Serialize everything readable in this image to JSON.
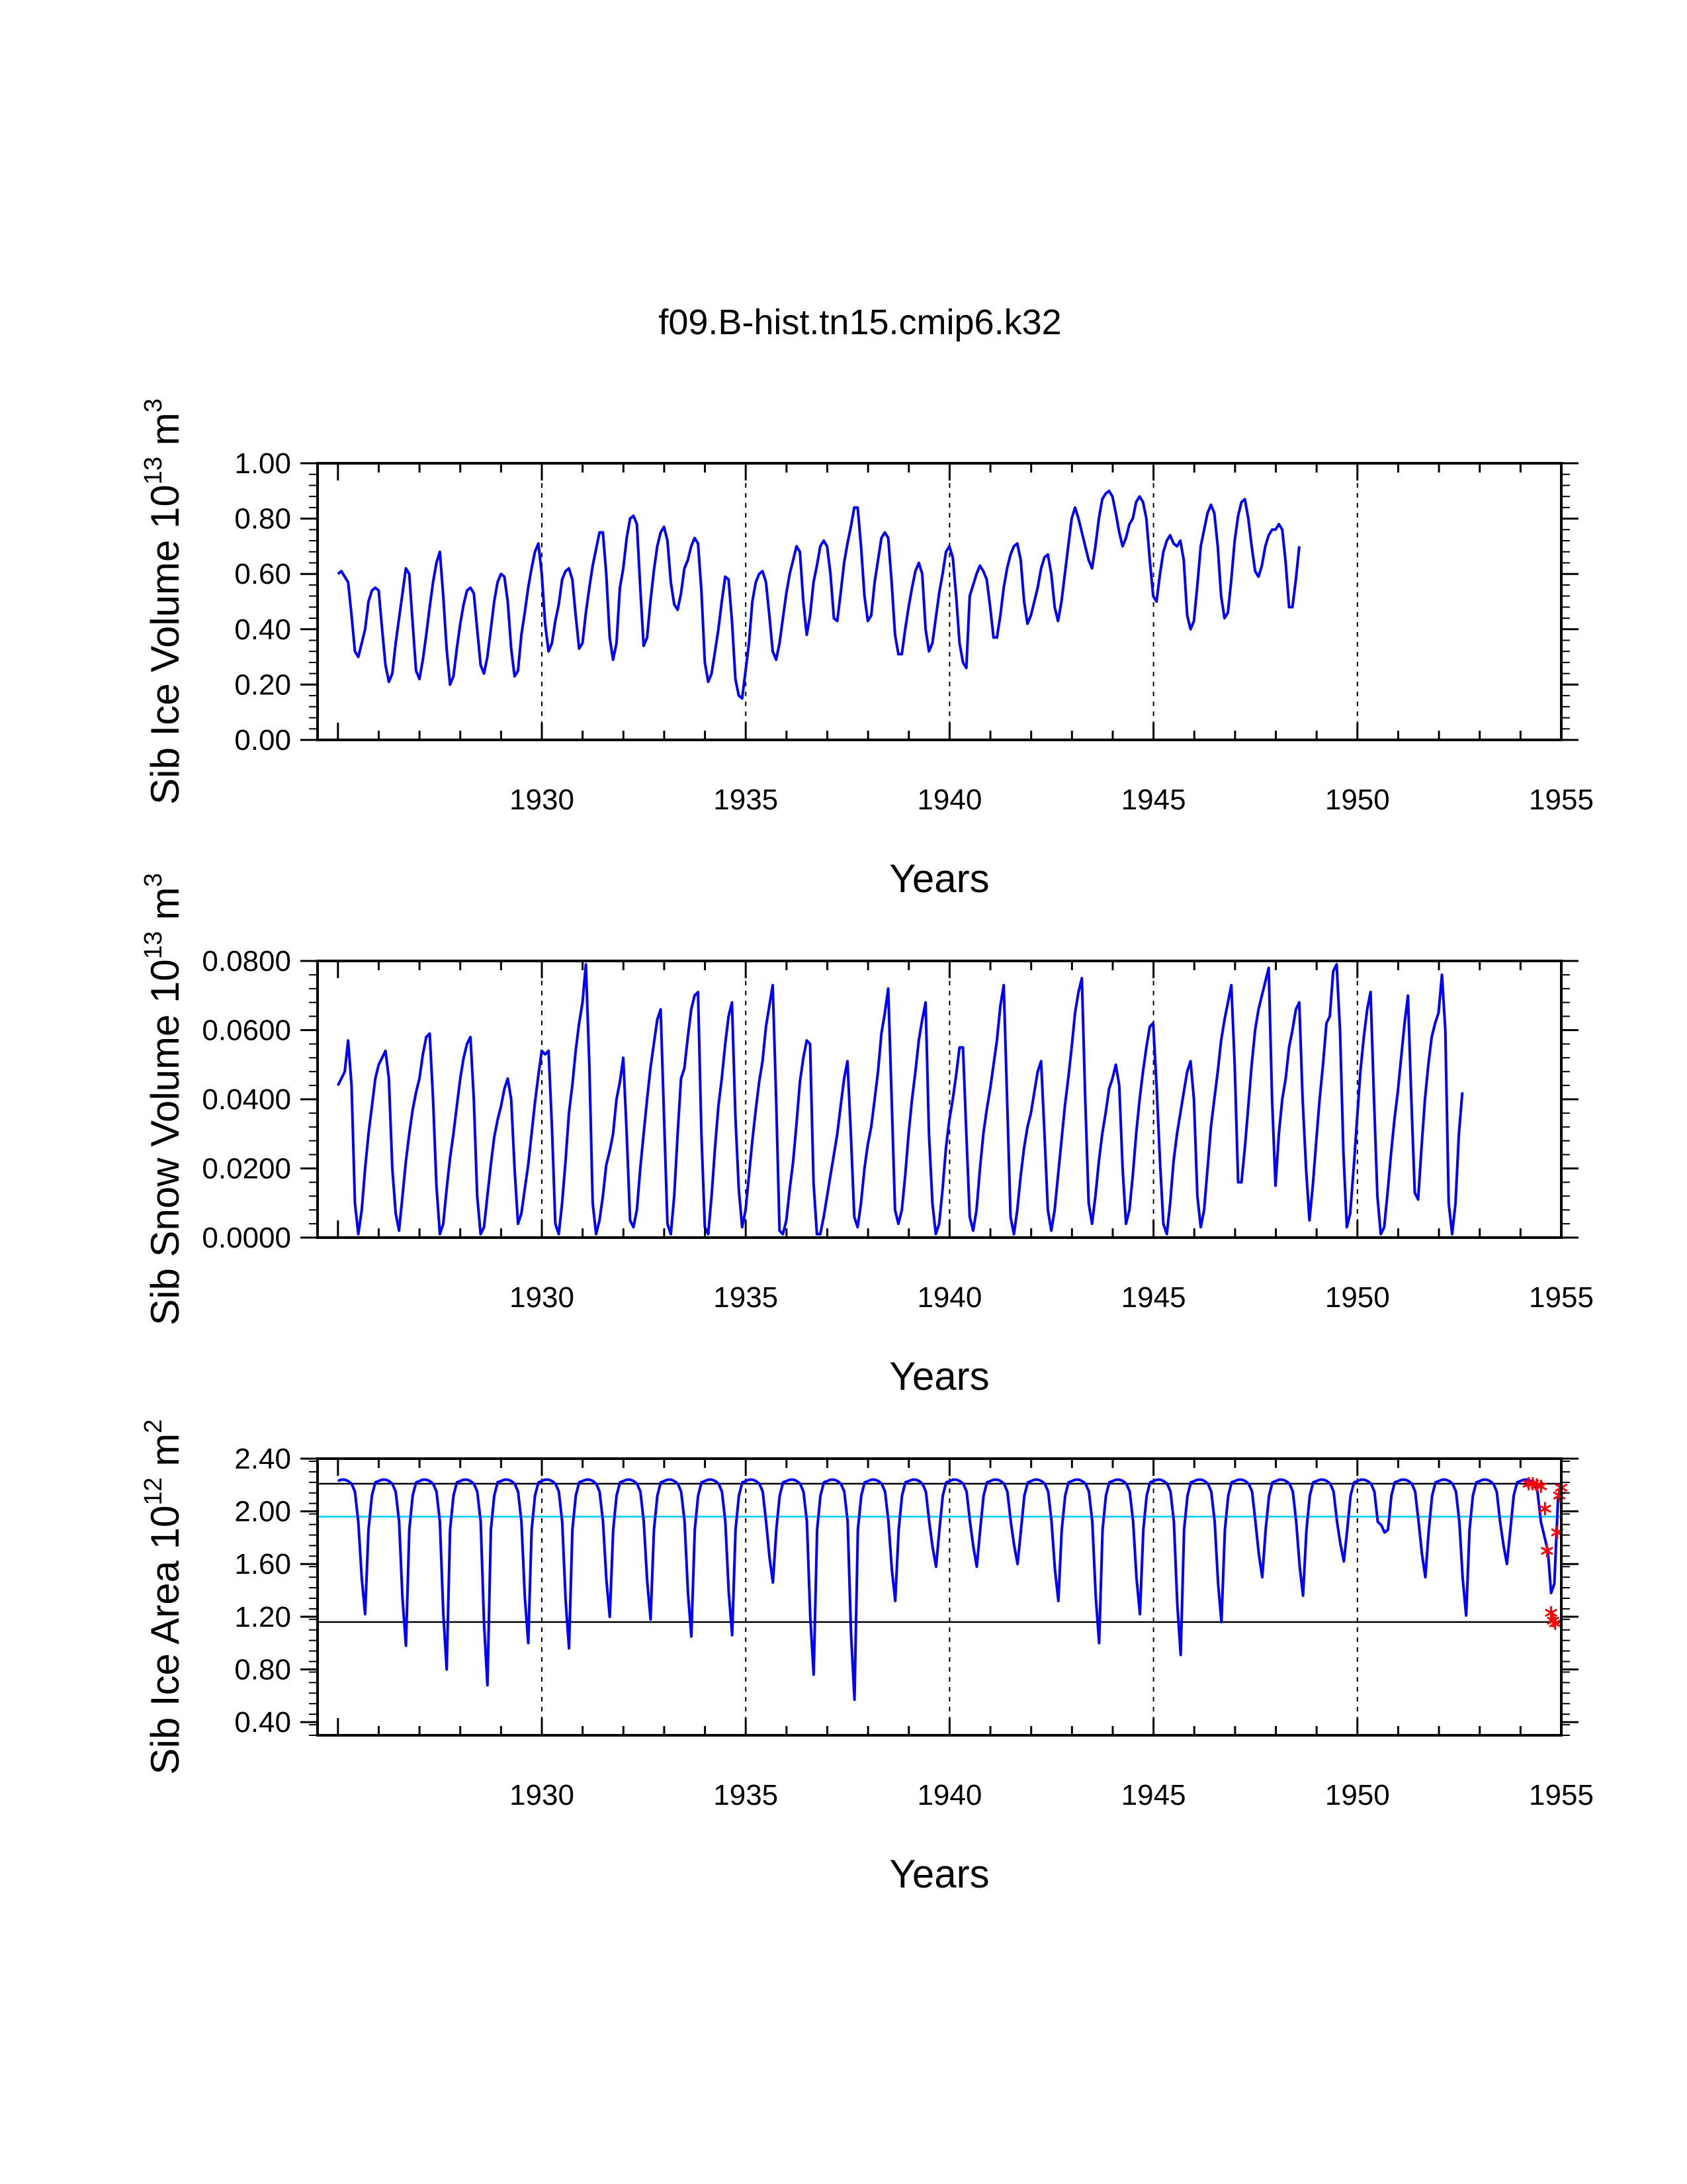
{
  "figure_title": "f09.B-hist.tn15.cmip6.k32",
  "chart_data": [
    {
      "type": "line",
      "title": "f09.B-hist.tn15.cmip6.k32",
      "ylabel": "Sib Ice Volume 10^13 m^3",
      "ylabel_main": "Sib Ice Volume 10",
      "ylabel_exp": "13",
      "ylabel_unit": " m",
      "ylabel_unit_exp": "3",
      "xlabel": "Years",
      "xlim": [
        1924.5,
        1955.0
      ],
      "ylim": [
        0.0,
        1.0
      ],
      "xticks": [
        "1930",
        "1935",
        "1940",
        "1945",
        "1950",
        "1955"
      ],
      "yticks": [
        "0.00",
        "0.20",
        "0.40",
        "0.60",
        "0.80",
        "1.00"
      ],
      "ytick_values": [
        0.0,
        0.2,
        0.4,
        0.6,
        0.8,
        1.0
      ],
      "vlines": [
        1930,
        1935,
        1940,
        1945,
        1950
      ],
      "line_color": "#0000ff",
      "series": [
        {
          "name": "Sib Ice Volume",
          "start_year": 1925,
          "step": 0.0833,
          "values": [
            0.6,
            0.61,
            0.59,
            0.57,
            0.45,
            0.32,
            0.3,
            0.35,
            0.4,
            0.5,
            0.54,
            0.55,
            0.54,
            0.4,
            0.27,
            0.21,
            0.24,
            0.35,
            0.44,
            0.53,
            0.62,
            0.6,
            0.42,
            0.25,
            0.22,
            0.29,
            0.38,
            0.48,
            0.57,
            0.64,
            0.68,
            0.52,
            0.33,
            0.2,
            0.23,
            0.33,
            0.42,
            0.49,
            0.54,
            0.55,
            0.53,
            0.4,
            0.27,
            0.24,
            0.3,
            0.4,
            0.5,
            0.57,
            0.6,
            0.59,
            0.5,
            0.33,
            0.23,
            0.25,
            0.38,
            0.46,
            0.55,
            0.62,
            0.68,
            0.71,
            0.6,
            0.42,
            0.32,
            0.35,
            0.43,
            0.49,
            0.58,
            0.61,
            0.62,
            0.58,
            0.45,
            0.33,
            0.35,
            0.46,
            0.55,
            0.63,
            0.69,
            0.75,
            0.75,
            0.6,
            0.37,
            0.29,
            0.35,
            0.55,
            0.62,
            0.73,
            0.8,
            0.81,
            0.78,
            0.55,
            0.34,
            0.37,
            0.5,
            0.61,
            0.7,
            0.75,
            0.77,
            0.72,
            0.57,
            0.49,
            0.47,
            0.53,
            0.62,
            0.65,
            0.7,
            0.73,
            0.71,
            0.54,
            0.28,
            0.21,
            0.24,
            0.32,
            0.4,
            0.5,
            0.59,
            0.58,
            0.43,
            0.22,
            0.16,
            0.15,
            0.25,
            0.35,
            0.5,
            0.57,
            0.6,
            0.61,
            0.57,
            0.45,
            0.32,
            0.29,
            0.35,
            0.44,
            0.53,
            0.6,
            0.65,
            0.7,
            0.68,
            0.5,
            0.38,
            0.45,
            0.57,
            0.63,
            0.7,
            0.72,
            0.7,
            0.6,
            0.44,
            0.43,
            0.53,
            0.64,
            0.71,
            0.77,
            0.84,
            0.84,
            0.7,
            0.52,
            0.43,
            0.45,
            0.57,
            0.65,
            0.73,
            0.75,
            0.73,
            0.57,
            0.38,
            0.31,
            0.31,
            0.4,
            0.48,
            0.55,
            0.61,
            0.64,
            0.6,
            0.4,
            0.32,
            0.35,
            0.44,
            0.53,
            0.6,
            0.68,
            0.7,
            0.66,
            0.52,
            0.35,
            0.28,
            0.26,
            0.52,
            0.56,
            0.6,
            0.63,
            0.61,
            0.58,
            0.48,
            0.37,
            0.37,
            0.45,
            0.55,
            0.62,
            0.67,
            0.7,
            0.71,
            0.65,
            0.5,
            0.42,
            0.45,
            0.5,
            0.55,
            0.62,
            0.66,
            0.67,
            0.6,
            0.48,
            0.43,
            0.5,
            0.6,
            0.7,
            0.8,
            0.84,
            0.8,
            0.75,
            0.7,
            0.65,
            0.62,
            0.7,
            0.8,
            0.87,
            0.89,
            0.9,
            0.88,
            0.82,
            0.75,
            0.7,
            0.73,
            0.78,
            0.8,
            0.86,
            0.88,
            0.86,
            0.8,
            0.65,
            0.52,
            0.5,
            0.6,
            0.68,
            0.72,
            0.74,
            0.71,
            0.7,
            0.72,
            0.65,
            0.45,
            0.4,
            0.43,
            0.56,
            0.7,
            0.76,
            0.82,
            0.85,
            0.82,
            0.7,
            0.52,
            0.44,
            0.46,
            0.58,
            0.72,
            0.81,
            0.86,
            0.87,
            0.8,
            0.7,
            0.61,
            0.59,
            0.63,
            0.7,
            0.74,
            0.76,
            0.76,
            0.78,
            0.76,
            0.64,
            0.48,
            0.48,
            0.58,
            0.7
          ]
        }
      ]
    },
    {
      "type": "line",
      "ylabel": "Sib Snow Volume 10^13 m^3",
      "ylabel_main": "Sib Snow Volume 10",
      "ylabel_exp": "13",
      "ylabel_unit": " m",
      "ylabel_unit_exp": "3",
      "xlabel": "Years",
      "xlim": [
        1924.5,
        1955.0
      ],
      "ylim": [
        0.0,
        0.08
      ],
      "xticks": [
        "1930",
        "1935",
        "1940",
        "1945",
        "1950",
        "1955"
      ],
      "yticks": [
        "0.0000",
        "0.0200",
        "0.0400",
        "0.0600",
        "0.0800"
      ],
      "ytick_values": [
        0.0,
        0.02,
        0.04,
        0.06,
        0.08
      ],
      "vlines": [
        1930,
        1935,
        1940,
        1945,
        1950
      ],
      "line_color": "#0000ff",
      "series": [
        {
          "name": "Sib Snow Volume",
          "start_year": 1925,
          "step": 0.0833,
          "values": [
            0.044,
            0.046,
            0.048,
            0.057,
            0.044,
            0.01,
            0.001,
            0.008,
            0.02,
            0.03,
            0.038,
            0.046,
            0.05,
            0.052,
            0.054,
            0.046,
            0.02,
            0.007,
            0.002,
            0.012,
            0.022,
            0.03,
            0.037,
            0.042,
            0.046,
            0.053,
            0.058,
            0.059,
            0.04,
            0.015,
            0.001,
            0.004,
            0.014,
            0.023,
            0.03,
            0.038,
            0.046,
            0.052,
            0.056,
            0.058,
            0.04,
            0.012,
            0.001,
            0.003,
            0.012,
            0.021,
            0.029,
            0.034,
            0.038,
            0.043,
            0.046,
            0.04,
            0.02,
            0.004,
            0.007,
            0.014,
            0.021,
            0.03,
            0.039,
            0.047,
            0.054,
            0.053,
            0.054,
            0.032,
            0.004,
            0.001,
            0.01,
            0.022,
            0.036,
            0.044,
            0.054,
            0.062,
            0.068,
            0.079,
            0.05,
            0.01,
            0.001,
            0.005,
            0.012,
            0.021,
            0.025,
            0.03,
            0.04,
            0.045,
            0.052,
            0.03,
            0.005,
            0.003,
            0.008,
            0.02,
            0.03,
            0.04,
            0.049,
            0.056,
            0.063,
            0.066,
            0.035,
            0.004,
            0.001,
            0.012,
            0.03,
            0.046,
            0.049,
            0.058,
            0.066,
            0.07,
            0.071,
            0.03,
            0.003,
            0.001,
            0.012,
            0.026,
            0.038,
            0.046,
            0.056,
            0.064,
            0.068,
            0.035,
            0.014,
            0.003,
            0.008,
            0.018,
            0.028,
            0.037,
            0.045,
            0.051,
            0.061,
            0.067,
            0.073,
            0.04,
            0.002,
            0.001,
            0.005,
            0.014,
            0.022,
            0.033,
            0.045,
            0.052,
            0.057,
            0.056,
            0.016,
            0.001,
            0.001,
            0.006,
            0.012,
            0.018,
            0.024,
            0.03,
            0.038,
            0.046,
            0.051,
            0.03,
            0.006,
            0.003,
            0.01,
            0.02,
            0.027,
            0.032,
            0.04,
            0.048,
            0.059,
            0.065,
            0.072,
            0.04,
            0.008,
            0.004,
            0.008,
            0.018,
            0.03,
            0.04,
            0.048,
            0.057,
            0.063,
            0.068,
            0.03,
            0.01,
            0.001,
            0.004,
            0.014,
            0.026,
            0.034,
            0.04,
            0.047,
            0.055,
            0.055,
            0.03,
            0.006,
            0.002,
            0.008,
            0.02,
            0.03,
            0.037,
            0.043,
            0.05,
            0.057,
            0.067,
            0.073,
            0.04,
            0.006,
            0.001,
            0.008,
            0.018,
            0.026,
            0.032,
            0.036,
            0.042,
            0.048,
            0.051,
            0.03,
            0.008,
            0.002,
            0.008,
            0.018,
            0.028,
            0.038,
            0.046,
            0.055,
            0.065,
            0.071,
            0.075,
            0.04,
            0.01,
            0.004,
            0.012,
            0.022,
            0.03,
            0.036,
            0.043,
            0.046,
            0.05,
            0.044,
            0.02,
            0.004,
            0.008,
            0.018,
            0.03,
            0.04,
            0.048,
            0.055,
            0.061,
            0.062,
            0.044,
            0.022,
            0.004,
            0.001,
            0.01,
            0.022,
            0.03,
            0.036,
            0.042,
            0.048,
            0.051,
            0.04,
            0.012,
            0.003,
            0.008,
            0.02,
            0.032,
            0.04,
            0.048,
            0.057,
            0.063,
            0.068,
            0.073,
            0.05,
            0.016,
            0.016,
            0.026,
            0.038,
            0.05,
            0.06,
            0.066,
            0.07,
            0.074,
            0.078,
            0.04,
            0.015,
            0.03,
            0.04,
            0.046,
            0.055,
            0.06,
            0.066,
            0.068,
            0.04,
            0.02,
            0.005,
            0.015,
            0.028,
            0.04,
            0.05,
            0.062,
            0.064,
            0.077,
            0.079,
            0.06,
            0.025,
            0.003,
            0.007,
            0.02,
            0.034,
            0.048,
            0.058,
            0.066,
            0.071,
            0.04,
            0.012,
            0.001,
            0.003,
            0.013,
            0.024,
            0.034,
            0.042,
            0.052,
            0.062,
            0.07,
            0.04,
            0.013,
            0.011,
            0.026,
            0.04,
            0.05,
            0.058,
            0.062,
            0.065,
            0.076,
            0.06,
            0.01,
            0.001,
            0.01,
            0.03,
            0.042
          ]
        }
      ]
    },
    {
      "type": "line",
      "ylabel": "Sib Ice Area 10^12 m^2",
      "ylabel_main": "Sib Ice Area 10",
      "ylabel_exp": "12",
      "ylabel_unit": " m",
      "ylabel_unit_exp": "2",
      "xlabel": "Years",
      "xlim": [
        1924.5,
        1955.0
      ],
      "ylim": [
        0.3,
        2.4
      ],
      "xticks": [
        "1930",
        "1935",
        "1940",
        "1945",
        "1950",
        "1955"
      ],
      "yticks": [
        "0.40",
        "0.80",
        "1.20",
        "1.60",
        "2.00",
        "2.40"
      ],
      "ytick_values": [
        0.4,
        0.8,
        1.2,
        1.6,
        2.0,
        2.4
      ],
      "vlines": [
        1930,
        1935,
        1940,
        1945,
        1950
      ],
      "hlines": [
        {
          "value": 2.21,
          "color": "#000000"
        },
        {
          "value": 1.96,
          "color": "#00ccff"
        },
        {
          "value": 1.16,
          "color": "#000000"
        }
      ],
      "line_color": "#0000ff",
      "marker_color": "#ff0000",
      "markers": [
        {
          "x": 1954.2,
          "y": 2.21
        },
        {
          "x": 1954.3,
          "y": 2.21
        },
        {
          "x": 1954.4,
          "y": 2.2
        },
        {
          "x": 1954.5,
          "y": 2.19
        },
        {
          "x": 1954.6,
          "y": 2.02
        },
        {
          "x": 1954.65,
          "y": 1.7
        },
        {
          "x": 1954.75,
          "y": 1.23
        },
        {
          "x": 1954.8,
          "y": 1.17
        },
        {
          "x": 1954.85,
          "y": 1.15
        },
        {
          "x": 1954.9,
          "y": 1.84
        },
        {
          "x": 1954.95,
          "y": 2.12
        },
        {
          "x": 1955.0,
          "y": 2.18
        }
      ],
      "series": [
        {
          "name": "Sib Ice Area",
          "min_values": [
            1.22,
            0.98,
            0.8,
            0.68,
            1.0,
            0.96,
            1.2,
            1.18,
            1.05,
            1.06,
            1.46,
            0.76,
            0.57,
            1.32,
            1.58,
            1.58,
            1.6,
            1.32,
            1.0,
            1.22,
            0.91,
            1.16,
            1.5,
            1.36,
            1.62,
            1.84,
            1.5,
            1.21,
            1.6,
            1.4
          ]
        }
      ]
    }
  ]
}
